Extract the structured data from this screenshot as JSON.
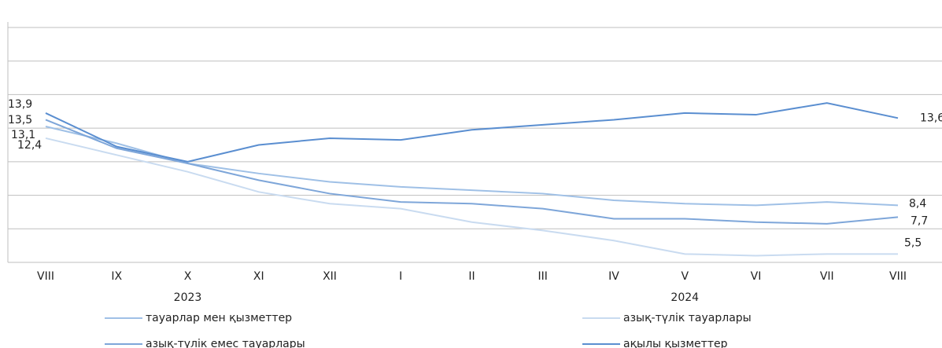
{
  "chart_data": {
    "type": "line",
    "categories": [
      "VIII",
      "IX",
      "X",
      "XI",
      "XII",
      "I",
      "II",
      "III",
      "IV",
      "V",
      "VI",
      "VII",
      "VIII"
    ],
    "x_groups": [
      {
        "label": "2023",
        "at": 2
      },
      {
        "label": "2024",
        "at": 9
      }
    ],
    "ylim": [
      5,
      19
    ],
    "yticks": [
      5,
      7,
      9,
      11,
      13,
      15,
      17,
      19
    ],
    "grid": true,
    "series": [
      {
        "name": "тауарлар мен қызметтер",
        "color": "#9fc0e6",
        "values": [
          13.1,
          12.1,
          10.9,
          10.3,
          9.8,
          9.5,
          9.3,
          9.1,
          8.7,
          8.5,
          8.4,
          8.6,
          8.4
        ],
        "value_labels": [
          "13,1",
          null,
          null,
          null,
          null,
          null,
          null,
          null,
          null,
          null,
          null,
          null,
          "8,4"
        ]
      },
      {
        "name": "азық-түлік тауарлары",
        "color": "#c9dbf0",
        "values": [
          12.4,
          11.4,
          10.4,
          9.2,
          8.5,
          8.2,
          7.4,
          6.9,
          6.3,
          5.5,
          5.4,
          5.5,
          5.5
        ],
        "value_labels": [
          "12,4",
          null,
          null,
          null,
          null,
          null,
          null,
          null,
          null,
          null,
          null,
          null,
          "5,5"
        ]
      },
      {
        "name": "азық-түлік емес тауарлары",
        "color": "#7ea6d9",
        "values": [
          13.5,
          11.8,
          10.9,
          9.9,
          9.1,
          8.6,
          8.5,
          8.2,
          7.6,
          7.6,
          7.4,
          7.3,
          7.7
        ],
        "value_labels": [
          "13,5",
          null,
          null,
          null,
          null,
          null,
          null,
          null,
          null,
          null,
          null,
          null,
          "7,7"
        ]
      },
      {
        "name": "ақылы қызметтер",
        "color": "#5a8ed0",
        "values": [
          13.9,
          11.9,
          11.0,
          12.0,
          12.4,
          12.3,
          12.9,
          13.2,
          13.5,
          13.9,
          13.8,
          14.5,
          13.6
        ],
        "value_labels": [
          "13,9",
          null,
          null,
          null,
          null,
          null,
          null,
          null,
          null,
          null,
          null,
          null,
          "13,6"
        ]
      }
    ]
  }
}
